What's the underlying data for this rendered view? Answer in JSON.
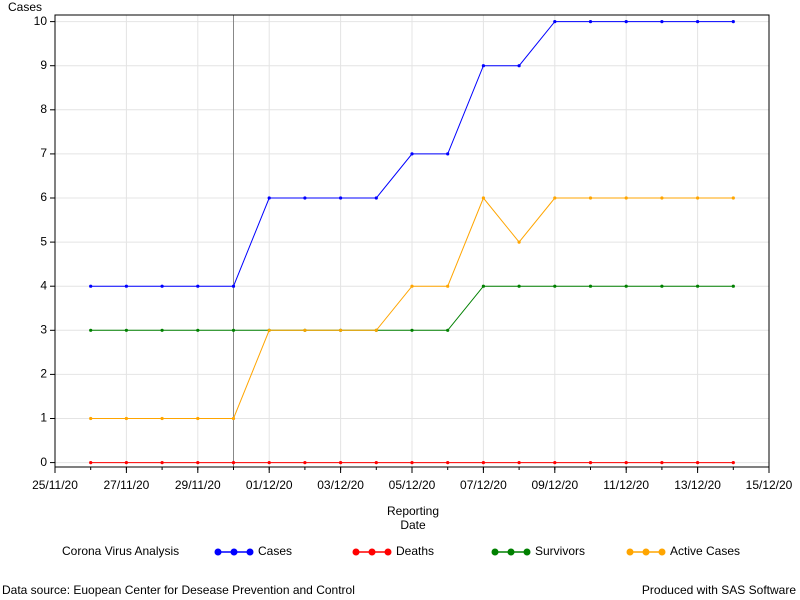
{
  "chart_data": {
    "type": "line",
    "y_label": "Cases",
    "x_label": "Reporting Date",
    "legend_title": "Corona Virus Analysis",
    "footnote_left": "Data source: Euopean Center for Desease Prevention and Control",
    "footnote_right": "Produced with SAS Software",
    "x": [
      "26/11/20",
      "27/11/20",
      "28/11/20",
      "29/11/20",
      "30/11/20",
      "01/12/20",
      "02/12/20",
      "03/12/20",
      "04/12/20",
      "05/12/20",
      "06/12/20",
      "07/12/20",
      "08/12/20",
      "09/12/20",
      "10/12/20",
      "11/12/20",
      "12/12/20",
      "13/12/20",
      "14/12/20"
    ],
    "series": [
      {
        "name": "Cases",
        "color": "#0000ff",
        "values": [
          4,
          4,
          4,
          4,
          4,
          6,
          6,
          6,
          6,
          7,
          7,
          9,
          9,
          10,
          10,
          10,
          10,
          10,
          10
        ]
      },
      {
        "name": "Deaths",
        "color": "#ff0000",
        "values": [
          0,
          0,
          0,
          0,
          0,
          0,
          0,
          0,
          0,
          0,
          0,
          0,
          0,
          0,
          0,
          0,
          0,
          0,
          0
        ]
      },
      {
        "name": "Survivors",
        "color": "#008000",
        "values": [
          3,
          3,
          3,
          3,
          3,
          3,
          3,
          3,
          3,
          3,
          3,
          4,
          4,
          4,
          4,
          4,
          4,
          4,
          4
        ]
      },
      {
        "name": "Active Cases",
        "color": "#ffa500",
        "values": [
          1,
          1,
          1,
          1,
          1,
          3,
          3,
          3,
          3,
          4,
          4,
          6,
          5,
          6,
          6,
          6,
          6,
          6,
          6
        ]
      }
    ],
    "xlim": [
      "25/11/20",
      "15/12/20"
    ],
    "xticks": [
      "25/11/20",
      "27/11/20",
      "29/11/20",
      "01/12/20",
      "03/12/20",
      "05/12/20",
      "07/12/20",
      "09/12/20",
      "11/12/20",
      "13/12/20",
      "15/12/20"
    ],
    "ylim": [
      -0.1,
      10.15
    ],
    "yticks": [
      0,
      1,
      2,
      3,
      4,
      5,
      6,
      7,
      8,
      9,
      10
    ],
    "reference_line_x": "30/11/20",
    "grid": true
  }
}
